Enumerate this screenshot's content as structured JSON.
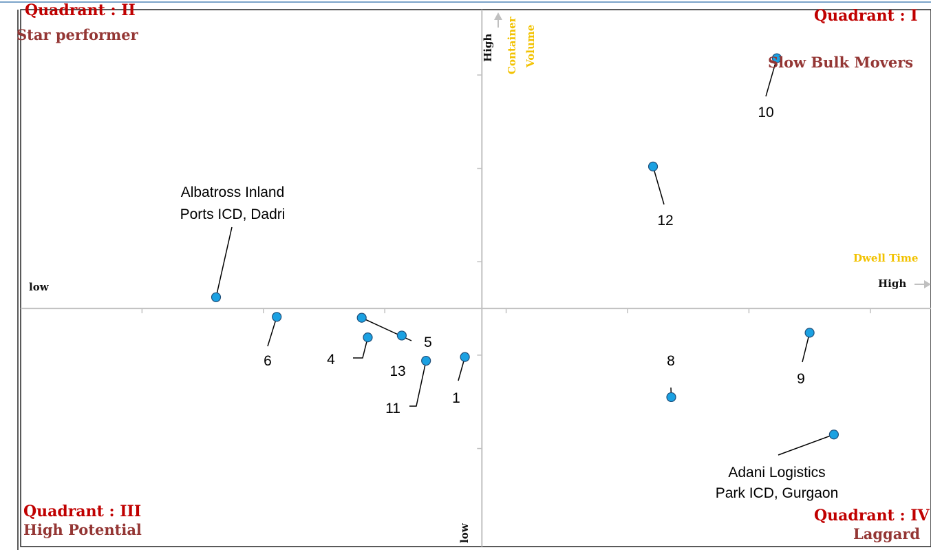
{
  "chart_data": {
    "type": "scatter",
    "title": "",
    "xlabel": "Dwell Time",
    "ylabel": "Container Volume",
    "x_axis": {
      "low_label": "low",
      "high_label": "High",
      "name": "Dwell Time"
    },
    "y_axis": {
      "low_label": "low",
      "high_label": "High",
      "name_line1": "Container",
      "name_line2": "Volume"
    },
    "quadrants": [
      {
        "id": "II",
        "title": "Quadrant : II",
        "name": "Star performer",
        "position": "top-left"
      },
      {
        "id": "I",
        "title": "Quadrant : I",
        "name": "Slow Bulk Movers",
        "position": "top-right"
      },
      {
        "id": "III",
        "title": "Quadrant : III",
        "name": "High Potential",
        "position": "bottom-left"
      },
      {
        "id": "IV",
        "title": "Quadrant : IV",
        "name": "Laggard",
        "position": "bottom-right"
      }
    ],
    "xlim": [
      -3.8,
      3.7
    ],
    "ylim": [
      -2.55,
      3.2
    ],
    "grid": false,
    "points": [
      {
        "label": "Albatross Inland Ports ICD, Dadri",
        "x": -2.19,
        "y": 0.12
      },
      {
        "label": "6",
        "x": -1.69,
        "y": -0.09
      },
      {
        "label": "5",
        "x": -0.99,
        "y": -0.1
      },
      {
        "label": "4",
        "x": -0.94,
        "y": -0.31
      },
      {
        "label": "13",
        "x": -0.66,
        "y": -0.29
      },
      {
        "label": "11",
        "x": -0.46,
        "y": -0.56
      },
      {
        "label": "1",
        "x": -0.14,
        "y": -0.52
      },
      {
        "label": "8",
        "x": 1.56,
        "y": -0.95
      },
      {
        "label": "9",
        "x": 2.7,
        "y": -0.26
      },
      {
        "label": "Adani Logistics Park ICD, Gurgaon",
        "x": 2.9,
        "y": -1.35
      },
      {
        "label": "12",
        "x": 1.41,
        "y": 1.52
      },
      {
        "label": "10",
        "x": 2.43,
        "y": 2.68
      }
    ],
    "colors": {
      "point": "#1ba1e2",
      "quadrant_title": "#c00000",
      "quadrant_name": "#943634",
      "axis_name": "#f2c200",
      "axis": "#c0c0c0"
    }
  }
}
